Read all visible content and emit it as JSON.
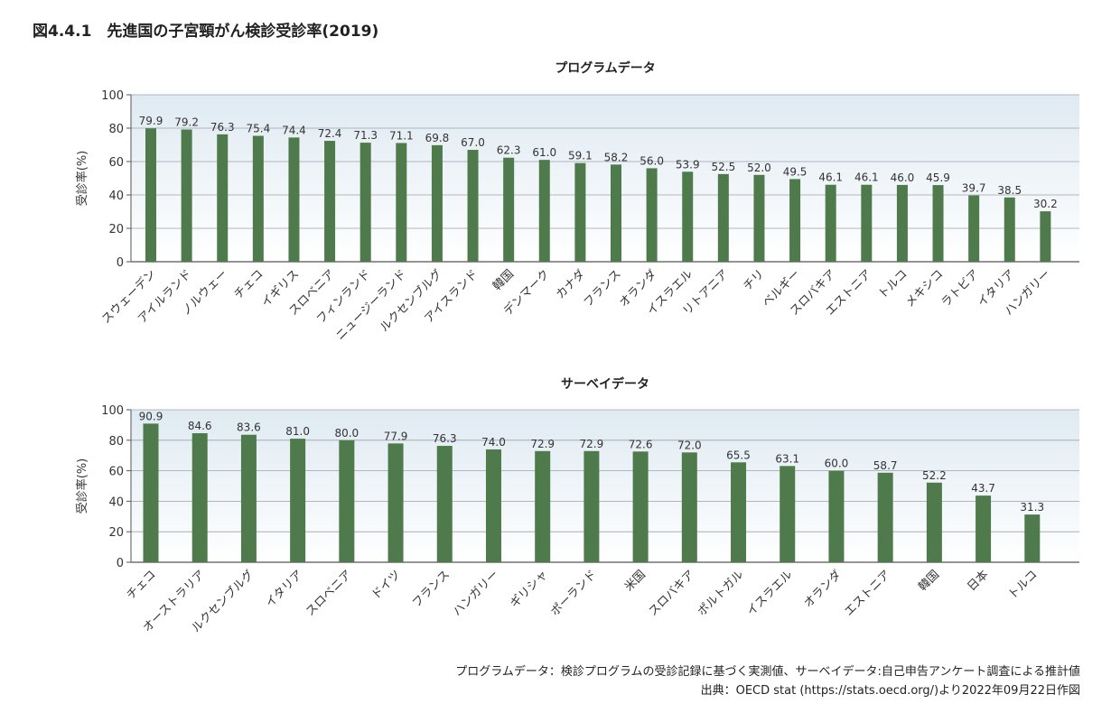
{
  "figure": {
    "title": "図4.4.1　先進国の子宮頸がん検診受診率(2019)"
  },
  "chart_data": [
    {
      "type": "bar",
      "title": "プログラムデータ",
      "ylabel": "受診率(%)",
      "ylim": [
        0,
        100
      ],
      "yticks": [
        0,
        20,
        40,
        60,
        80,
        100
      ],
      "grid": true,
      "bar_color": "#4f7a4b",
      "categories": [
        "スウェーデン",
        "アイルランド",
        "ノルウェー",
        "チェコ",
        "イギリス",
        "スロベニア",
        "フィンランド",
        "ニュージーランド",
        "ルクセンブルグ",
        "アイスランド",
        "韓国",
        "デンマーク",
        "カナダ",
        "フランス",
        "オランダ",
        "イスラエル",
        "リトアニア",
        "チリ",
        "ベルギー",
        "スロバキア",
        "エストニア",
        "トルコ",
        "メキシコ",
        "ラトビア",
        "イタリア",
        "ハンガリー"
      ],
      "values": [
        79.9,
        79.2,
        76.3,
        75.4,
        74.4,
        72.4,
        71.3,
        71.1,
        69.8,
        67.0,
        62.3,
        61.0,
        59.1,
        58.2,
        56.0,
        53.9,
        52.5,
        52.0,
        49.5,
        46.1,
        46.1,
        46.0,
        45.9,
        39.7,
        38.5,
        30.2
      ],
      "value_labels": [
        "79.9",
        "79.2",
        "76.3",
        "75.4",
        "74.4",
        "72.4",
        "71.3",
        "71.1",
        "69.8",
        "67.0",
        "62.3",
        "61.0",
        "59.1",
        "58.2",
        "56.0",
        "53.9",
        "52.5",
        "52.0",
        "49.5",
        "46.1",
        "46.1",
        "46.0",
        "45.9",
        "39.7",
        "38.5",
        "30.2"
      ]
    },
    {
      "type": "bar",
      "title": "サーベイデータ",
      "ylabel": "受診率(%)",
      "ylim": [
        0,
        100
      ],
      "yticks": [
        0,
        20,
        40,
        60,
        80,
        100
      ],
      "grid": true,
      "bar_color": "#4f7a4b",
      "categories": [
        "チェコ",
        "オーストラリア",
        "ルクセンブルグ",
        "イタリア",
        "スロベニア",
        "ドイツ",
        "フランス",
        "ハンガリー",
        "ギリシャ",
        "ポーランド",
        "米国",
        "スロバキア",
        "ポルトガル",
        "イスラエル",
        "オランダ",
        "エストニア",
        "韓国",
        "日本",
        "トルコ"
      ],
      "values": [
        90.9,
        84.6,
        83.6,
        81.0,
        80.0,
        77.9,
        76.3,
        74.0,
        72.9,
        72.9,
        72.6,
        72.0,
        65.5,
        63.1,
        60.0,
        58.7,
        52.2,
        43.7,
        31.3
      ],
      "value_labels": [
        "90.9",
        "84.6",
        "83.6",
        "81.0",
        "80.0",
        "77.9",
        "76.3",
        "74.0",
        "72.9",
        "72.9",
        "72.6",
        "72.0",
        "65.5",
        "63.1",
        "60.0",
        "58.7",
        "52.2",
        "43.7",
        "31.3"
      ]
    }
  ],
  "footnotes": {
    "line1": "プログラムデータ：検診プログラムの受診記録に基づく実測値、サーベイデータ:自己申告アンケート調査による推計値",
    "line2": "出典：OECD stat (https://stats.oecd.org/)より2022年09月22日作図"
  }
}
